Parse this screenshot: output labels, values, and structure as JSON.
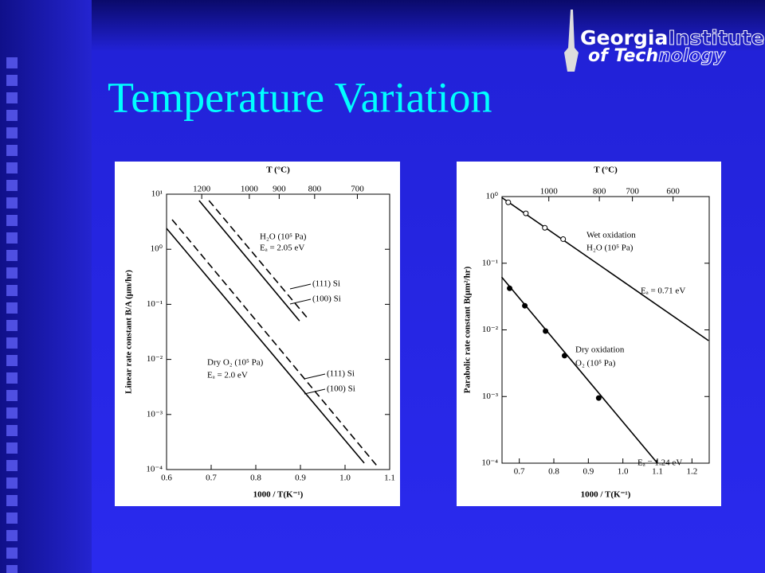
{
  "slide": {
    "title": "Temperature Variation",
    "logo": [
      "Georgia",
      "Institute",
      "of Tech",
      "nology"
    ]
  },
  "chart_data": [
    {
      "type": "line",
      "ylog": true,
      "xlabel": "1000 / T(K⁻¹)",
      "ylabel": "Linear rate constant B/A (μm/hr)",
      "x2label": "T (°C)",
      "xlim": [
        0.6,
        1.1
      ],
      "xticks": [
        0.6,
        0.7,
        0.8,
        0.9,
        {
          "value": 1,
          "label": "1.0"
        },
        1.1
      ],
      "x2scale": "reciprocal-kelvin",
      "x2ticks": [
        1200,
        1000,
        900,
        800,
        700
      ],
      "ylim": [
        0.0001,
        10
      ],
      "yticks": [
        {
          "value": 0.0001,
          "label": "10⁻⁴"
        },
        {
          "value": 0.001,
          "label": "10⁻³"
        },
        {
          "value": 0.01,
          "label": "10⁻²"
        },
        {
          "value": 0.1,
          "label": "10⁻¹"
        },
        {
          "value": 1,
          "label": "10⁰"
        },
        {
          "value": 10,
          "label": "10¹"
        }
      ],
      "series": [
        {
          "name": "(111) Si",
          "dash": false,
          "x": [
            0.673,
            0.898
          ],
          "values": [
            7.66,
            0.05
          ]
        },
        {
          "name": "(100) Si",
          "dash": true,
          "x": [
            0.695,
            0.916
          ],
          "values": [
            7.66,
            0.056
          ]
        },
        {
          "name": "(111) Si",
          "dash": true,
          "x": [
            0.6125,
            1.071
          ],
          "values": [
            3.45,
            0.000118
          ]
        },
        {
          "name": "(100) Si",
          "dash": false,
          "x": [
            0.6,
            1.043
          ],
          "values": [
            2.39,
            0.000131
          ]
        }
      ],
      "annotations": [
        "H₂O (10⁵ Pa)",
        "Eₐ = 2.05 eV",
        "Dry O₂ (10⁵ Pa)",
        "Eₐ = 2.0 eV"
      ]
    },
    {
      "type": "line",
      "ylog": true,
      "xlabel": "1000 / T(K⁻¹)",
      "ylabel": "Parabolic rate constant B(μm²/hr)",
      "x2label": "T (°C)",
      "xlim": [
        0.65,
        1.25
      ],
      "xticks": [
        0.7,
        0.8,
        0.9,
        {
          "value": 1,
          "label": "1.0"
        },
        1.1,
        1.2
      ],
      "x2scale": "reciprocal-kelvin",
      "x2ticks": [
        1000,
        800,
        700,
        600
      ],
      "ylim": [
        0.0001,
        1
      ],
      "yticks": [
        {
          "value": 0.0001,
          "label": "10⁻⁴"
        },
        {
          "value": 0.001,
          "label": "10⁻³"
        },
        {
          "value": 0.01,
          "label": "10⁻²"
        },
        {
          "value": 0.1,
          "label": "10⁻¹"
        },
        {
          "value": 1,
          "label": "10⁰"
        }
      ],
      "series": [
        {
          "marker": "none",
          "x": [
            0.649,
            1.248
          ],
          "values": [
            0.97,
            0.0069
          ]
        },
        {
          "marker": "open",
          "x": [
            0.668,
            0.719,
            0.774,
            0.827
          ],
          "values": [
            0.82,
            0.56,
            0.34,
            0.23
          ]
        },
        {
          "marker": "none",
          "x": [
            0.649,
            1.1
          ],
          "values": [
            0.062,
            0.0001
          ]
        },
        {
          "marker": "filled",
          "x": [
            0.672,
            0.716,
            0.776,
            0.831,
            0.93
          ],
          "values": [
            0.042,
            0.023,
            0.0096,
            0.0041,
            0.00095
          ]
        }
      ],
      "annotations": [
        "Wet oxidation",
        "H₂O (10⁵ Pa)",
        "Eₐ = 0.71 eV",
        "Dry oxidation",
        "O₂ (10⁵ Pa)",
        "Eₐ = 1.24 eV"
      ]
    }
  ]
}
